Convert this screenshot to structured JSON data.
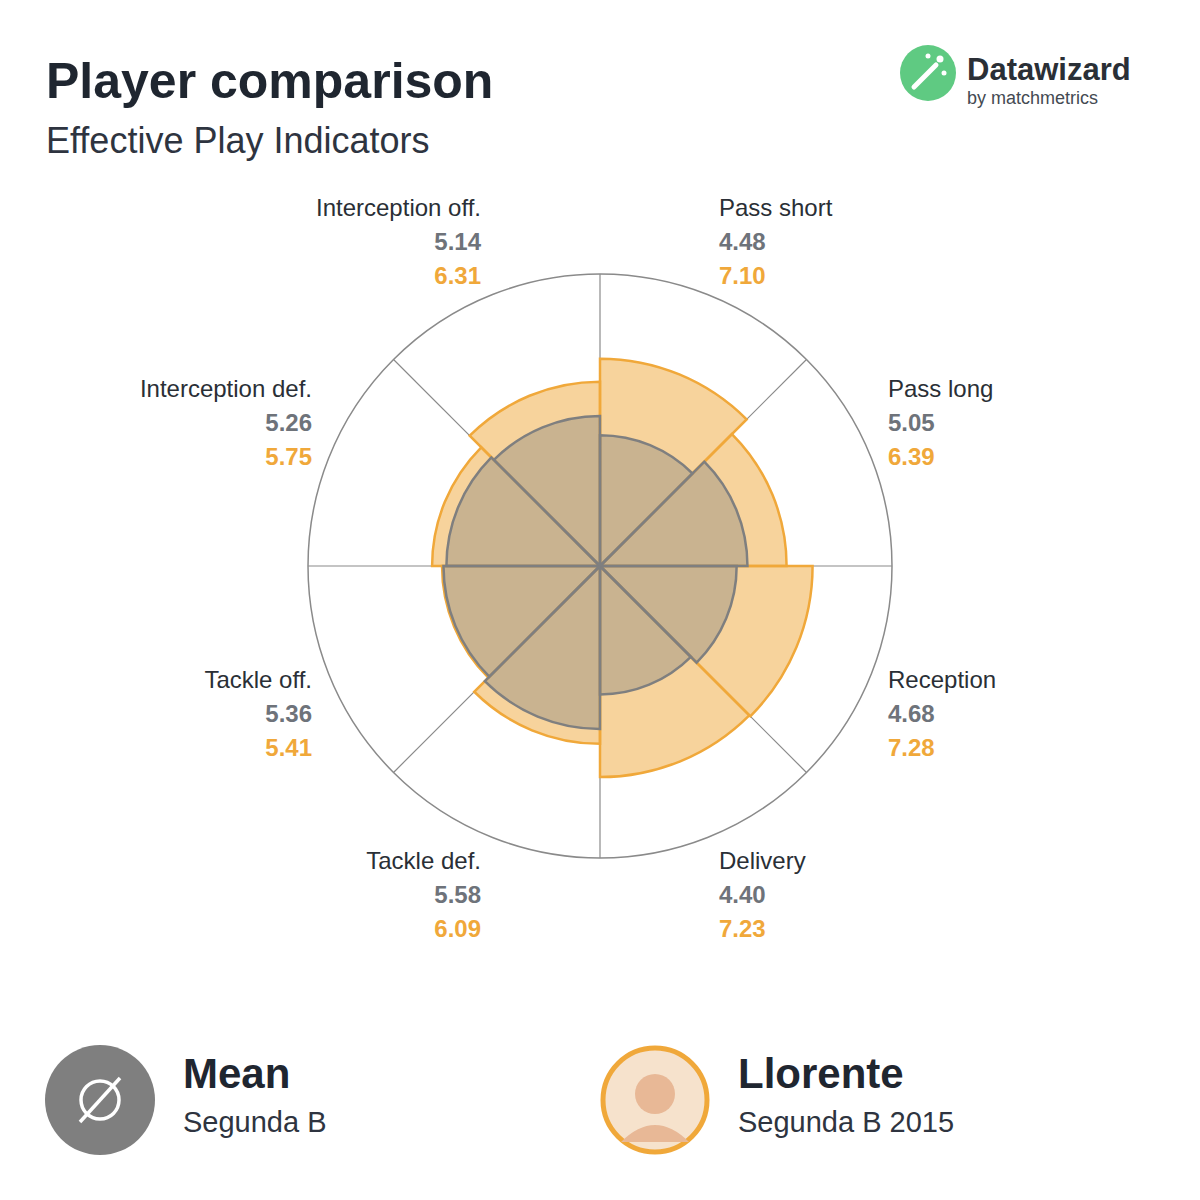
{
  "chart_data": {
    "type": "barpolar",
    "title": "Player comparison",
    "subtitle": "Effective Play Indicators",
    "brand": {
      "name": "Datawizard",
      "tagline": "by matchmetrics"
    },
    "categories": [
      "Pass short",
      "Pass long",
      "Reception",
      "Delivery",
      "Tackle def.",
      "Tackle off.",
      "Interception def.",
      "Interception off."
    ],
    "series": [
      {
        "name": "Mean",
        "subtitle": "Segunda B",
        "color": "#7f7f7f",
        "values": [
          4.48,
          5.05,
          4.68,
          4.4,
          5.58,
          5.36,
          5.26,
          5.14
        ],
        "value_labels": [
          "4.48",
          "5.05",
          "4.68",
          "4.40",
          "5.58",
          "5.36",
          "5.26",
          "5.14"
        ]
      },
      {
        "name": "Llorente",
        "subtitle": "Segunda B 2015",
        "color": "#f0a83a",
        "values": [
          7.1,
          6.39,
          7.28,
          7.23,
          6.09,
          5.41,
          5.75,
          6.31
        ],
        "value_labels": [
          "7.10",
          "6.39",
          "7.28",
          "7.23",
          "6.09",
          "5.41",
          "5.75",
          "6.31"
        ]
      }
    ],
    "ylim": [
      0,
      10
    ],
    "tick_labels": false,
    "data_labels": true,
    "legend": "bottom"
  }
}
